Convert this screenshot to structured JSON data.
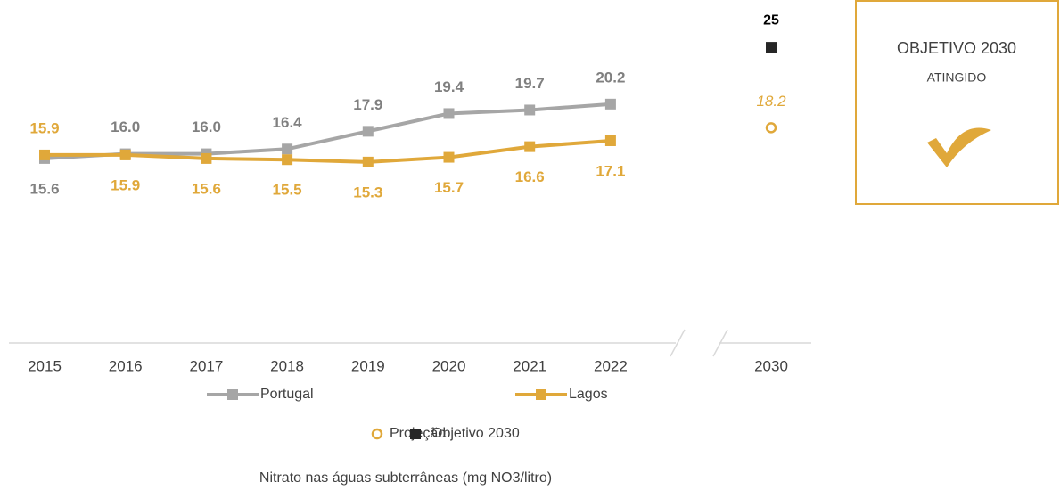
{
  "chart_data": {
    "type": "line",
    "categories": [
      "2015",
      "2016",
      "2017",
      "2018",
      "2019",
      "2020",
      "2021",
      "2022",
      "2030"
    ],
    "series": [
      {
        "name": "Portugal",
        "color": "#a6a6a6",
        "label_color": "#808080",
        "marker": "square",
        "values": [
          15.6,
          16.0,
          16.0,
          16.4,
          17.9,
          19.4,
          19.7,
          20.2,
          null
        ],
        "value_labels": [
          "15.6",
          "16.0",
          "16.0",
          "16.4",
          "17.9",
          "19.4",
          "19.7",
          "20.2",
          null
        ]
      },
      {
        "name": "Lagos",
        "color": "#e0a83a",
        "label_color": "#e0a83a",
        "marker": "square",
        "values": [
          15.9,
          15.9,
          15.6,
          15.5,
          15.3,
          15.7,
          16.6,
          17.1,
          null
        ],
        "value_labels": [
          "15.9",
          "15.9",
          "15.6",
          "15.5",
          "15.3",
          "15.7",
          "16.6",
          "17.1",
          null
        ]
      },
      {
        "name": "Projeção",
        "color": "#e0a83a",
        "label_color": "#e0a83a",
        "marker": "hollow-circle",
        "values": [
          null,
          null,
          null,
          null,
          null,
          null,
          null,
          null,
          18.2
        ],
        "value_labels": [
          null,
          null,
          null,
          null,
          null,
          null,
          null,
          null,
          "18.2"
        ]
      },
      {
        "name": "Objetivo 2030",
        "color": "#262626",
        "label_color": "#000000",
        "marker": "square",
        "values": [
          null,
          null,
          null,
          null,
          null,
          null,
          null,
          null,
          25
        ]
      }
    ],
    "ylim": [
      0,
      29
    ],
    "x_label": "Nitrato nas águas subterrâneas (mg NO3/litro)",
    "box": {
      "title": "OBJETIVO 2030",
      "subtitle": "ATINGIDO"
    }
  }
}
